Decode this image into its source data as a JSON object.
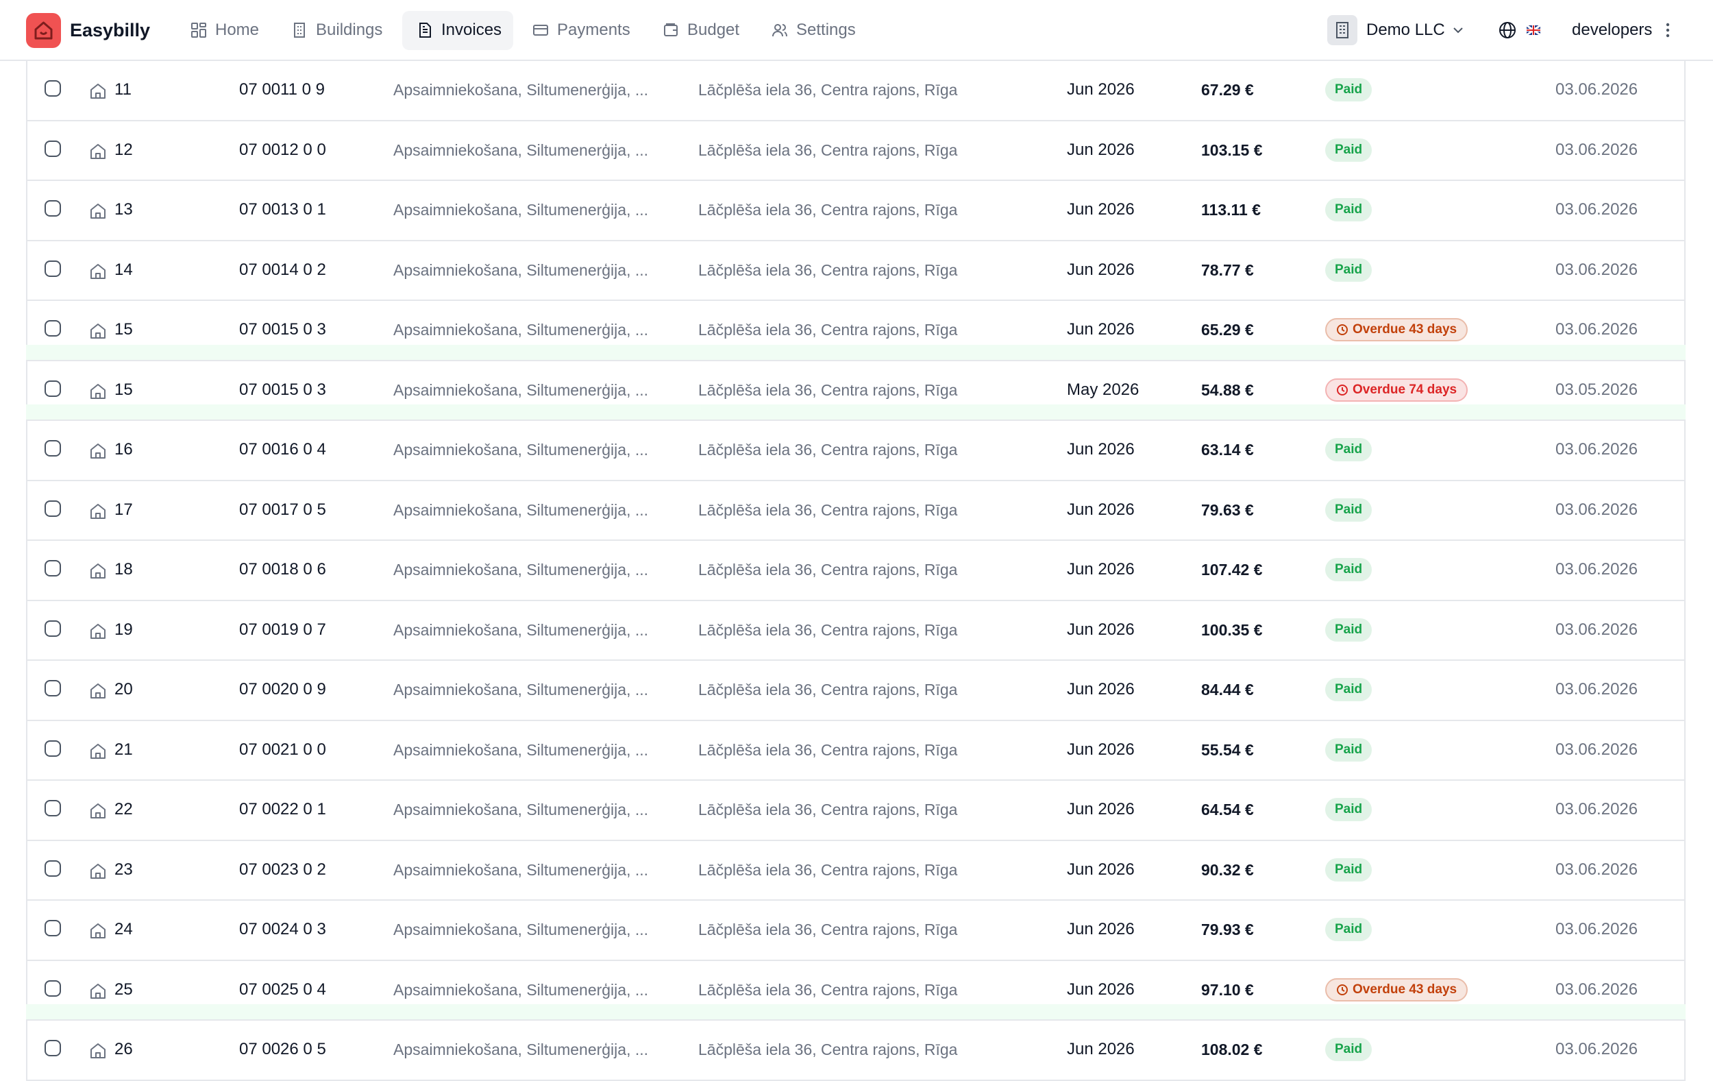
{
  "header": {
    "brand": "Easybilly",
    "nav": [
      {
        "label": "Home",
        "active": false
      },
      {
        "label": "Buildings",
        "active": false
      },
      {
        "label": "Invoices",
        "active": true
      },
      {
        "label": "Payments",
        "active": false
      },
      {
        "label": "Budget",
        "active": false
      },
      {
        "label": "Settings",
        "active": false
      }
    ],
    "company": "Demo LLC",
    "user": "developers"
  },
  "table": {
    "rows": [
      {
        "unit": "11",
        "account": "07 0011 0 9",
        "services": "Apsaimniekošana, Siltumenerģija, ...",
        "address": "Lāčplēša iela 36, Centra rajons, Rīga",
        "period": "Jun 2026",
        "amount": "67.29 €",
        "status": {
          "text": "Paid",
          "color": "#16a34a",
          "clock": false
        },
        "date": "03.06.2026"
      },
      {
        "unit": "12",
        "account": "07 0012 0 0",
        "services": "Apsaimniekošana, Siltumenerģija, ...",
        "address": "Lāčplēša iela 36, Centra rajons, Rīga",
        "period": "Jun 2026",
        "amount": "103.15 €",
        "status": {
          "text": "Paid",
          "color": "#16a34a",
          "clock": false
        },
        "date": "03.06.2026"
      },
      {
        "unit": "13",
        "account": "07 0013 0 1",
        "services": "Apsaimniekošana, Siltumenerģija, ...",
        "address": "Lāčplēša iela 36, Centra rajons, Rīga",
        "period": "Jun 2026",
        "amount": "113.11 €",
        "status": {
          "text": "Paid",
          "color": "#16a34a",
          "clock": false
        },
        "date": "03.06.2026"
      },
      {
        "unit": "14",
        "account": "07 0014 0 2",
        "services": "Apsaimniekošana, Siltumenerģija, ...",
        "address": "Lāčplēša iela 36, Centra rajons, Rīga",
        "period": "Jun 2026",
        "amount": "78.77 €",
        "status": {
          "text": "Paid",
          "color": "#16a34a",
          "clock": false
        },
        "date": "03.06.2026"
      },
      {
        "unit": "15",
        "account": "07 0015 0 3",
        "services": "Apsaimniekošana, Siltumenerģija, ...",
        "address": "Lāčplēša iela 36, Centra rajons, Rīga",
        "period": "Jun 2026",
        "amount": "65.29 €",
        "status": {
          "text": "Overdue 43 days",
          "color": "#c2410c",
          "clock": true
        },
        "date": "03.06.2026"
      },
      {
        "unit": "15",
        "account": "07 0015 0 3",
        "services": "Apsaimniekošana, Siltumenerģija, ...",
        "address": "Lāčplēša iela 36, Centra rajons, Rīga",
        "period": "May 2026",
        "amount": "54.88 €",
        "status": {
          "text": "Overdue 74 days",
          "color": "#dc2626",
          "clock": true
        },
        "date": "03.05.2026"
      },
      {
        "unit": "16",
        "account": "07 0016 0 4",
        "services": "Apsaimniekošana, Siltumenerģija, ...",
        "address": "Lāčplēša iela 36, Centra rajons, Rīga",
        "period": "Jun 2026",
        "amount": "63.14 €",
        "status": {
          "text": "Paid",
          "color": "#16a34a",
          "clock": false
        },
        "date": "03.06.2026"
      },
      {
        "unit": "17",
        "account": "07 0017 0 5",
        "services": "Apsaimniekošana, Siltumenerģija, ...",
        "address": "Lāčplēša iela 36, Centra rajons, Rīga",
        "period": "Jun 2026",
        "amount": "79.63 €",
        "status": {
          "text": "Paid",
          "color": "#16a34a",
          "clock": false
        },
        "date": "03.06.2026"
      },
      {
        "unit": "18",
        "account": "07 0018 0 6",
        "services": "Apsaimniekošana, Siltumenerģija, ...",
        "address": "Lāčplēša iela 36, Centra rajons, Rīga",
        "period": "Jun 2026",
        "amount": "107.42 €",
        "status": {
          "text": "Paid",
          "color": "#16a34a",
          "clock": false
        },
        "date": "03.06.2026"
      },
      {
        "unit": "19",
        "account": "07 0019 0 7",
        "services": "Apsaimniekošana, Siltumenerģija, ...",
        "address": "Lāčplēša iela 36, Centra rajons, Rīga",
        "period": "Jun 2026",
        "amount": "100.35 €",
        "status": {
          "text": "Paid",
          "color": "#16a34a",
          "clock": false
        },
        "date": "03.06.2026"
      },
      {
        "unit": "20",
        "account": "07 0020 0 9",
        "services": "Apsaimniekošana, Siltumenerģija, ...",
        "address": "Lāčplēša iela 36, Centra rajons, Rīga",
        "period": "Jun 2026",
        "amount": "84.44 €",
        "status": {
          "text": "Paid",
          "color": "#16a34a",
          "clock": false
        },
        "date": "03.06.2026"
      },
      {
        "unit": "21",
        "account": "07 0021 0 0",
        "services": "Apsaimniekošana, Siltumenerģija, ...",
        "address": "Lāčplēša iela 36, Centra rajons, Rīga",
        "period": "Jun 2026",
        "amount": "55.54 €",
        "status": {
          "text": "Paid",
          "color": "#16a34a",
          "clock": false
        },
        "date": "03.06.2026"
      },
      {
        "unit": "22",
        "account": "07 0022 0 1",
        "services": "Apsaimniekošana, Siltumenerģija, ...",
        "address": "Lāčplēša iela 36, Centra rajons, Rīga",
        "period": "Jun 2026",
        "amount": "64.54 €",
        "status": {
          "text": "Paid",
          "color": "#16a34a",
          "clock": false
        },
        "date": "03.06.2026"
      },
      {
        "unit": "23",
        "account": "07 0023 0 2",
        "services": "Apsaimniekošana, Siltumenerģija, ...",
        "address": "Lāčplēša iela 36, Centra rajons, Rīga",
        "period": "Jun 2026",
        "amount": "90.32 €",
        "status": {
          "text": "Paid",
          "color": "#16a34a",
          "clock": false
        },
        "date": "03.06.2026"
      },
      {
        "unit": "24",
        "account": "07 0024 0 3",
        "services": "Apsaimniekošana, Siltumenerģija, ...",
        "address": "Lāčplēša iela 36, Centra rajons, Rīga",
        "period": "Jun 2026",
        "amount": "79.93 €",
        "status": {
          "text": "Paid",
          "color": "#16a34a",
          "clock": false
        },
        "date": "03.06.2026"
      },
      {
        "unit": "25",
        "account": "07 0025 0 4",
        "services": "Apsaimniekošana, Siltumenerģija, ...",
        "address": "Lāčplēša iela 36, Centra rajons, Rīga",
        "period": "Jun 2026",
        "amount": "97.10 €",
        "status": {
          "text": "Overdue 43 days",
          "color": "#c2410c",
          "clock": true
        },
        "date": "03.06.2026"
      },
      {
        "unit": "26",
        "account": "07 0026 0 5",
        "services": "Apsaimniekošana, Siltumenerģija, ...",
        "address": "Lāčplēša iela 36, Centra rajons, Rīga",
        "period": "Jun 2026",
        "amount": "108.02 €",
        "status": {
          "text": "Paid",
          "color": "#16a34a",
          "clock": false
        },
        "date": "03.06.2026"
      }
    ]
  }
}
